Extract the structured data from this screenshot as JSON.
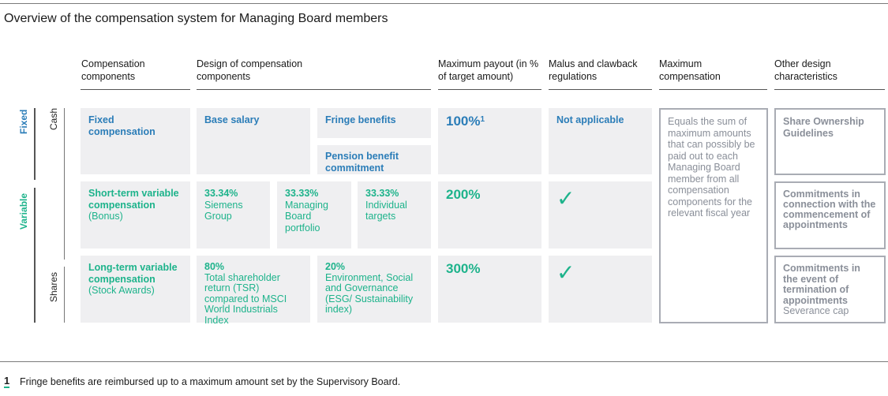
{
  "title": "Overview of the compensation system for Managing Board members",
  "headers": [
    "Compensation components",
    "Design of compensation components",
    "Maximum payout (in % of target amount)",
    "Malus and clawback regulations",
    "Maximum compensation",
    "Other design characteristics"
  ],
  "side": {
    "fixed": "Fixed",
    "variable": "Variable",
    "cash": "Cash",
    "shares": "Shares"
  },
  "rows": {
    "fixed": {
      "component": "Fixed compensation",
      "base": "Base salary",
      "fringe": "Fringe benefits",
      "pension": "Pension benefit commitment",
      "payout": "100%",
      "payout_note": "1",
      "malus": "Not applicable"
    },
    "short": {
      "component": "Short-term variable compensation",
      "component_sub": "(Bonus)",
      "parts": [
        {
          "pct": "33.34%",
          "label": "Siemens Group"
        },
        {
          "pct": "33.33%",
          "label": "Managing Board portfolio"
        },
        {
          "pct": "33.33%",
          "label": "Individual targets"
        }
      ],
      "payout": "200%",
      "malus": "check-icon"
    },
    "long": {
      "component": "Long-term variable compensation",
      "component_sub": "(Stock Awards)",
      "parts": [
        {
          "pct": "80%",
          "label": "Total shareholder return (TSR) compared to MSCI World Industrials Index"
        },
        {
          "pct": "20%",
          "label": "Environment, Social and Governance (ESG/ Sustainability index)"
        }
      ],
      "payout": "300%",
      "malus": "check-icon"
    }
  },
  "max_comp": "Equals the sum of maximum amounts that can possibly be paid out to each Managing Board member from all compensation components for the relevant fiscal year",
  "other": [
    {
      "title": "Share Ownership Guidelines"
    },
    {
      "title": "Commitments in connection with the commencement of appointments"
    },
    {
      "title": "Commitments in the event of termination of appointments",
      "sub": "Severance cap"
    }
  ],
  "footnote": {
    "num": "1",
    "text": "Fringe benefits are reimbursed up to a maximum amount set by the Supervisory Board."
  },
  "colors": {
    "blue": "#2b7db8",
    "green": "#1db38b",
    "cell": "#efeff1",
    "gray": "#8a8f99"
  }
}
